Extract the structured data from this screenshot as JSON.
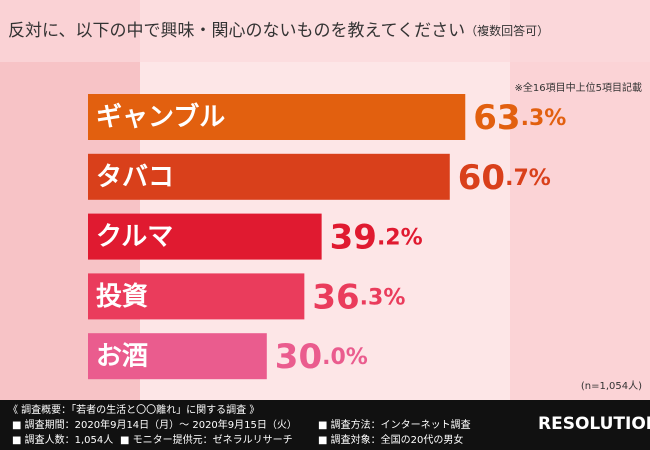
{
  "header": {
    "title": "反対に、以下の中で興味・関心のないものを教えてください",
    "title_note": "（複数回答可）"
  },
  "note": "※全16項目中上位5項目記載",
  "chart_data": {
    "type": "bar",
    "orientation": "horizontal",
    "categories": [
      "ギャンブル",
      "タバコ",
      "クルマ",
      "投資",
      "お酒"
    ],
    "values": [
      63.3,
      60.7,
      39.2,
      36.3,
      30.0
    ],
    "value_labels": [
      "63.3%",
      "60.7%",
      "39.2%",
      "36.3%",
      "30.0%"
    ],
    "colors": [
      "#e2600f",
      "#d9401b",
      "#e01a30",
      "#ea3c5c",
      "#ea5c8e"
    ]
  },
  "sample_note": "(n=1,054人)",
  "footer": {
    "heading": "《 調査概要：「若者の生活と〇〇離れ」に関する調査 》",
    "items": [
      "■ 調査期間：2020年9月14日（月）～ 2020年9月15日（火）",
      "■ 調査方法：インターネット調査",
      "■ 調査人数：1,054人",
      "■ モニター提供元：ゼネラルリサーチ",
      "■ 調査対象：全国の20代の男女"
    ]
  },
  "logo": "RESOLUTION"
}
